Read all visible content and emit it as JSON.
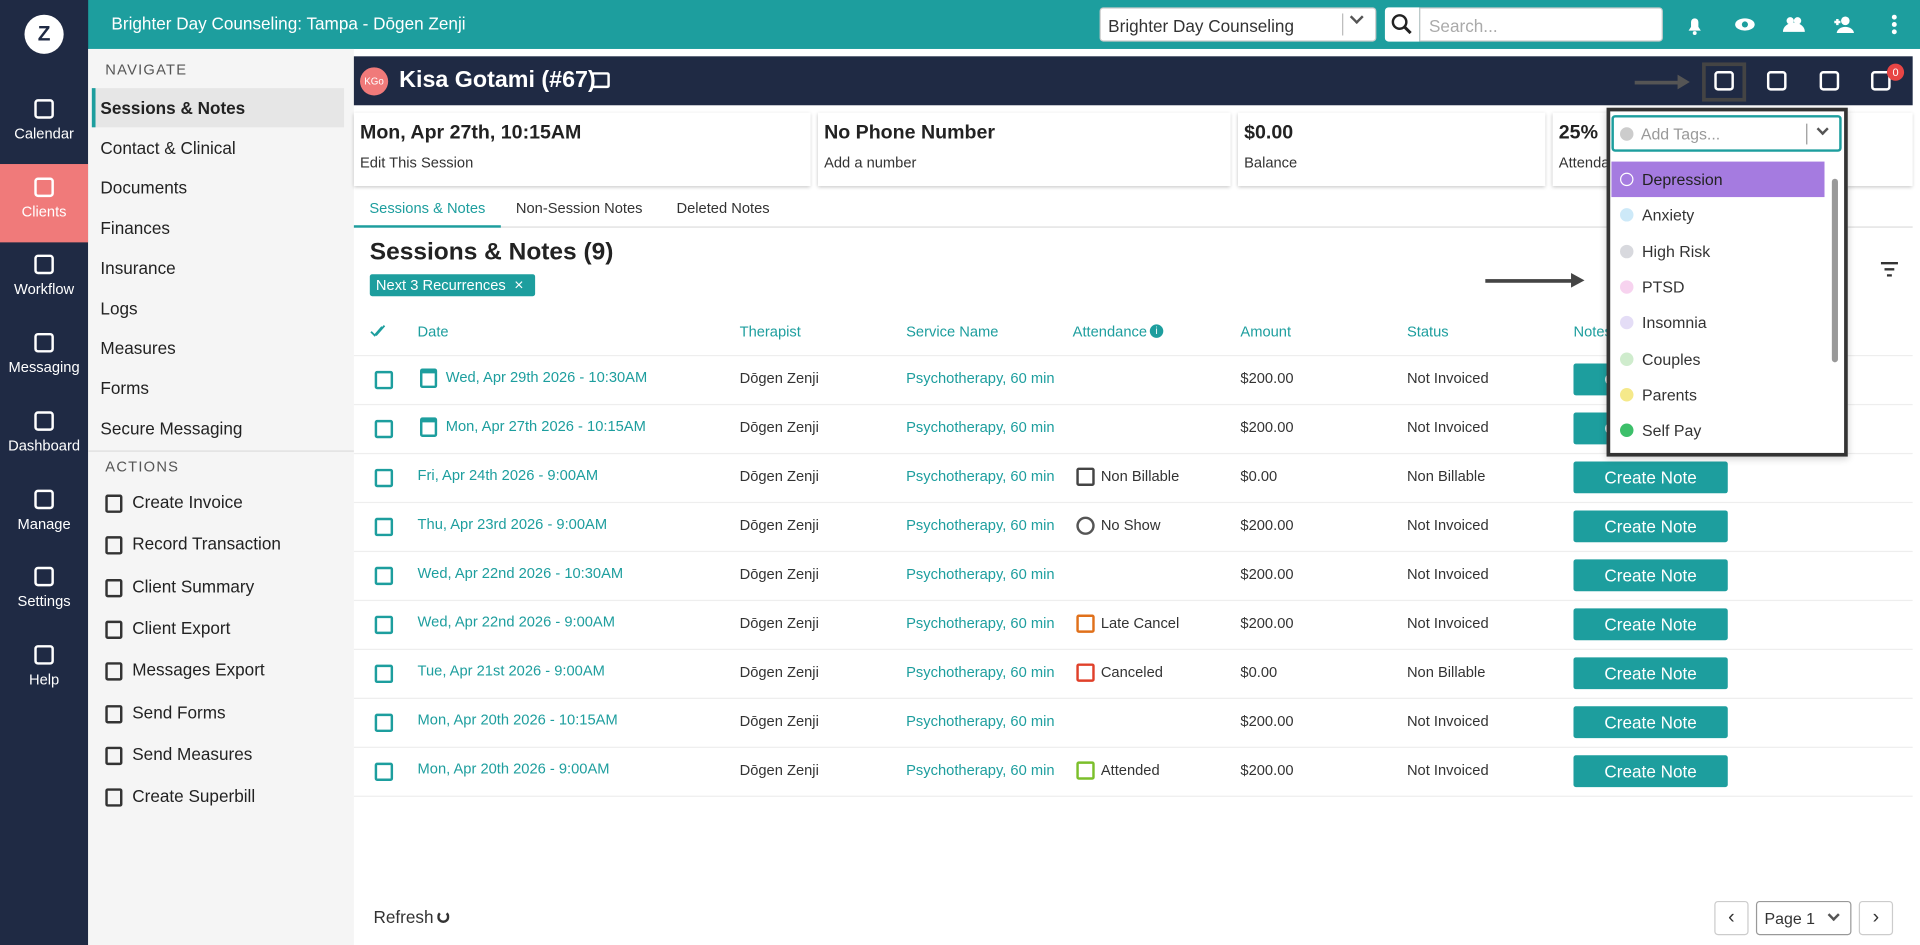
{
  "topbar": {
    "logo": "Z",
    "title": "Brighter Day Counseling: Tampa - Dōgen Zenji",
    "practice_select": "Brighter Day Counseling",
    "search_placeholder": "Search..."
  },
  "sidebar": [
    "Calendar",
    "Clients",
    "Workflow",
    "Messaging",
    "Dashboard",
    "Manage",
    "Settings",
    "Help"
  ],
  "nav": {
    "navigate_heading": "NAVIGATE",
    "navigate": [
      "Sessions & Notes",
      "Contact & Clinical",
      "Documents",
      "Finances",
      "Insurance",
      "Logs",
      "Measures",
      "Forms",
      "Secure Messaging"
    ],
    "actions_heading": "ACTIONS",
    "actions": [
      "Create Invoice",
      "Record Transaction",
      "Client Summary",
      "Client Export",
      "Messages Export",
      "Send Forms",
      "Send Measures",
      "Create Superbill"
    ]
  },
  "client": {
    "initials": "KGo",
    "name": "Kisa Gotami (#67)",
    "notification_count": 0
  },
  "cards": [
    {
      "title": "Mon, Apr 27th, 10:15AM",
      "subtitle": "Edit This Session"
    },
    {
      "title": "No Phone Number",
      "subtitle": "Add a number"
    },
    {
      "title": "$0.00",
      "subtitle": "Balance"
    },
    {
      "title": "25%",
      "subtitle": "Attendance"
    }
  ],
  "tabs": [
    "Sessions & Notes",
    "Non-Session Notes",
    "Deleted Notes"
  ],
  "table": {
    "title": "Sessions & Notes (9)",
    "filter_chip": "Next 3 Recurrences",
    "columns": [
      "Date",
      "Therapist",
      "Service Name",
      "Attendance",
      "Amount",
      "Status",
      "Notes"
    ],
    "rows": [
      {
        "date": "Wed, Apr 29th 2026 - 10:30AM",
        "upcoming": true,
        "therapist": "Dōgen Zenji",
        "service": "Psychotherapy, 60 min",
        "attendance": null,
        "amount": "$200.00",
        "status": "Not Invoiced",
        "action": "Create Note"
      },
      {
        "date": "Mon, Apr 27th 2026 - 10:15AM",
        "upcoming": true,
        "therapist": "Dōgen Zenji",
        "service": "Psychotherapy, 60 min",
        "attendance": null,
        "amount": "$200.00",
        "status": "Not Invoiced",
        "action": "Create Note"
      },
      {
        "date": "Fri, Apr 24th 2026 - 9:00AM",
        "therapist": "Dōgen Zenji",
        "service": "Psychotherapy, 60 min",
        "attendance": {
          "label": "Non Billable",
          "color": "#444444"
        },
        "amount": "$0.00",
        "status": "Non Billable",
        "action": "Create Note"
      },
      {
        "date": "Thu, Apr 23rd 2026 - 9:00AM",
        "therapist": "Dōgen Zenji",
        "service": "Psychotherapy, 60 min",
        "attendance": {
          "label": "No Show",
          "color": "#555555"
        },
        "amount": "$200.00",
        "status": "Not Invoiced",
        "action": "Create Note"
      },
      {
        "date": "Wed, Apr 22nd 2026 - 10:30AM",
        "therapist": "Dōgen Zenji",
        "service": "Psychotherapy, 60 min",
        "attendance": null,
        "amount": "$200.00",
        "status": "Not Invoiced",
        "action": "Create Note"
      },
      {
        "date": "Wed, Apr 22nd 2026 - 9:00AM",
        "therapist": "Dōgen Zenji",
        "service": "Psychotherapy, 60 min",
        "attendance": {
          "label": "Late Cancel",
          "color": "#e0701a"
        },
        "amount": "$200.00",
        "status": "Not Invoiced",
        "action": "Create Note"
      },
      {
        "date": "Tue, Apr 21st 2026 - 9:00AM",
        "therapist": "Dōgen Zenji",
        "service": "Psychotherapy, 60 min",
        "attendance": {
          "label": "Canceled",
          "color": "#e0402a"
        },
        "amount": "$0.00",
        "status": "Non Billable",
        "action": "Create Note"
      },
      {
        "date": "Mon, Apr 20th 2026 - 10:15AM",
        "therapist": "Dōgen Zenji",
        "service": "Psychotherapy, 60 min",
        "attendance": null,
        "amount": "$200.00",
        "status": "Not Invoiced",
        "action": "Create Note"
      },
      {
        "date": "Mon, Apr 20th 2026 - 9:00AM",
        "therapist": "Dōgen Zenji",
        "service": "Psychotherapy, 60 min",
        "attendance": {
          "label": "Attended",
          "color": "#7bbf2a"
        },
        "amount": "$200.00",
        "status": "Not Invoiced",
        "action": "Create Note"
      }
    ]
  },
  "footer": {
    "refresh": "Refresh",
    "page": "Page 1"
  },
  "tags_dropdown": {
    "placeholder": "Add Tags...",
    "options": [
      {
        "label": "Depression",
        "color": "#a57be0"
      },
      {
        "label": "Anxiety",
        "color": "#cde9f8"
      },
      {
        "label": "High Risk",
        "color": "#d8d9de"
      },
      {
        "label": "PTSD",
        "color": "#f7d3ef"
      },
      {
        "label": "Insomnia",
        "color": "#e4ddf6"
      },
      {
        "label": "Couples",
        "color": "#cfeccd"
      },
      {
        "label": "Parents",
        "color": "#f5e98a"
      },
      {
        "label": "Self Pay",
        "color": "#3cbf6a"
      }
    ]
  }
}
